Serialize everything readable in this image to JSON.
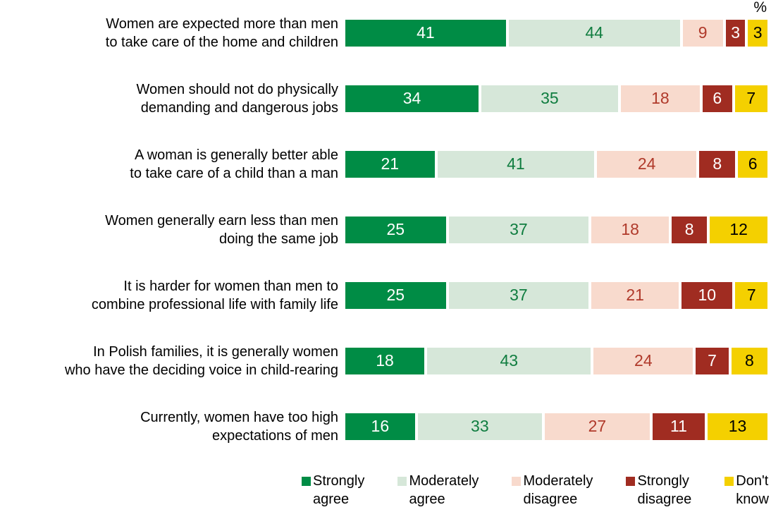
{
  "chart_data": {
    "type": "bar",
    "orientation": "horizontal",
    "stacked": true,
    "unit_label": "%",
    "xlim": [
      0,
      100
    ],
    "grid": false,
    "legend_position": "bottom",
    "categories": [
      {
        "lines": [
          "Women are expected more than men",
          "to take care of the home and children"
        ]
      },
      {
        "lines": [
          "Women should not do physically",
          "demanding and dangerous jobs"
        ]
      },
      {
        "lines": [
          "A woman is generally better able",
          "to take care of a child than a man"
        ]
      },
      {
        "lines": [
          "Women generally earn less than men",
          "doing the same job"
        ]
      },
      {
        "lines": [
          "It is harder for women than men to",
          "combine professional life with family life"
        ]
      },
      {
        "lines": [
          "In Polish families, it is generally women",
          "who have the deciding voice in child-rearing"
        ]
      },
      {
        "lines": [
          "Currently, women have too high",
          "expectations of men"
        ]
      }
    ],
    "series": [
      {
        "name": "Strongly agree",
        "slug": "strongly-agree",
        "legend_lines": [
          "Strongly",
          "agree"
        ],
        "color": "#008C45",
        "text_color": "#FFFFFF",
        "values": [
          41,
          34,
          21,
          25,
          25,
          18,
          16
        ]
      },
      {
        "name": "Moderately agree",
        "slug": "moderately-agree",
        "legend_lines": [
          "Moderately",
          "agree"
        ],
        "color": "#D6E7D9",
        "text_color": "#107D40",
        "values": [
          44,
          35,
          41,
          37,
          37,
          43,
          33
        ]
      },
      {
        "name": "Moderately disagree",
        "slug": "moderately-disagree",
        "legend_lines": [
          "Moderately",
          "disagree"
        ],
        "color": "#F8DACD",
        "text_color": "#B03A2B",
        "values": [
          9,
          18,
          24,
          18,
          21,
          24,
          27
        ]
      },
      {
        "name": "Strongly disagree",
        "slug": "strongly-disagree",
        "legend_lines": [
          "Strongly",
          "disagree"
        ],
        "color": "#A02C21",
        "text_color": "#FFFFFF",
        "values": [
          3,
          6,
          8,
          8,
          10,
          7,
          11
        ]
      },
      {
        "name": "Don't know",
        "slug": "dont-know",
        "legend_lines": [
          "Don't",
          "know"
        ],
        "color": "#F4D000",
        "text_color": "#000000",
        "values": [
          3,
          7,
          6,
          12,
          7,
          8,
          13
        ]
      }
    ]
  }
}
